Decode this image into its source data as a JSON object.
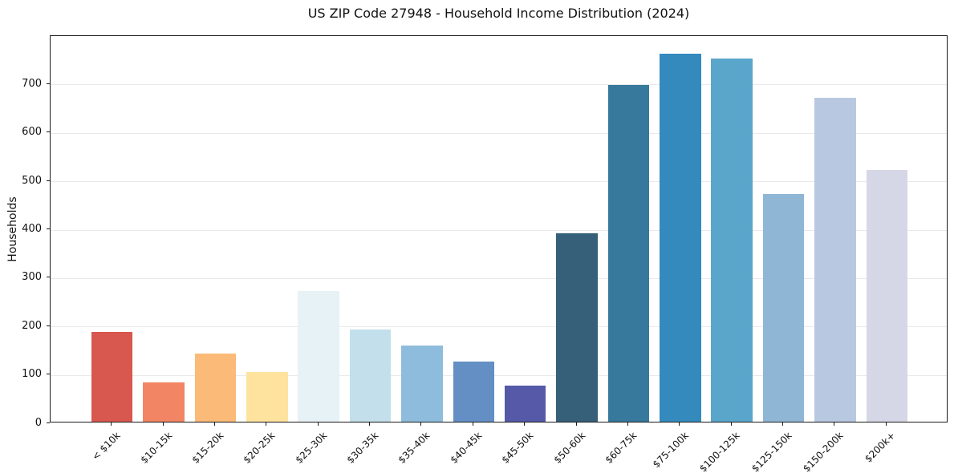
{
  "chart_data": {
    "type": "bar",
    "title": "US ZIP Code 27948 - Household Income Distribution (2024)",
    "xlabel": "",
    "ylabel": "Households",
    "categories": [
      "< $10k",
      "$10-15k",
      "$15-20k",
      "$20-25k",
      "$25-30k",
      "$30-35k",
      "$35-40k",
      "$40-45k",
      "$45-50k",
      "$50-60k",
      "$60-75k",
      "$75-100k",
      "$100-125k",
      "$125-150k",
      "$150-200k",
      "$200k+"
    ],
    "values": [
      185,
      82,
      140,
      103,
      270,
      190,
      158,
      125,
      75,
      390,
      695,
      760,
      750,
      470,
      670,
      520
    ],
    "bar_colors": [
      "#d8574f",
      "#f28563",
      "#fbba77",
      "#fde39e",
      "#e6f2f5",
      "#c2dfeb",
      "#8ebcdc",
      "#648fc4",
      "#5559a7",
      "#36607a",
      "#37799c",
      "#348abd",
      "#5aa6cb",
      "#90b6d6",
      "#b7c8e0",
      "#d6d7e6"
    ],
    "ylim": [
      0,
      800
    ],
    "yticks": [
      0,
      100,
      200,
      300,
      400,
      500,
      600,
      700
    ],
    "grid": "horizontal",
    "legend": "none",
    "gridline_color": "#e9e9e9",
    "axis_color": "#1a1a1a",
    "background_color": "#ffffff"
  }
}
